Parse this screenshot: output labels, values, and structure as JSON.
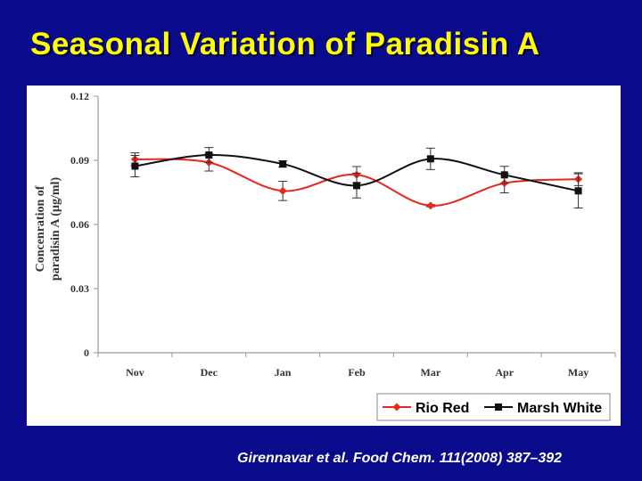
{
  "slide": {
    "title": "Seasonal Variation of Paradisin A",
    "citation": "Girennavar et al. Food Chem. 111(2008) 387–392"
  },
  "colors": {
    "background": "#0a0a8c",
    "title": "#ffff00",
    "rio_red": "#e8251e",
    "marsh_white": "#111111"
  },
  "chart_data": {
    "type": "line",
    "title": "",
    "xlabel": "",
    "ylabel_lines": [
      "Concenration of",
      "paradisin A (µg/ml)"
    ],
    "categories": [
      "Nov",
      "Dec",
      "Jan",
      "Feb",
      "Mar",
      "Apr",
      "May"
    ],
    "ylim": [
      0,
      0.12
    ],
    "yticks": [
      "0",
      "0.03",
      "0.06",
      "0.09",
      "0.12"
    ],
    "ytick_values": [
      0,
      0.03,
      0.06,
      0.09,
      0.12
    ],
    "grid": false,
    "smooth": true,
    "legend_position": "bottom-right",
    "series": [
      {
        "name": "Rio Red",
        "marker": "diamond",
        "color": "#e8251e",
        "values": [
          0.0905,
          0.089,
          0.0757,
          0.0833,
          0.0688,
          0.0793,
          0.0812
        ],
        "error": [
          0.003,
          0.004,
          0.0045,
          0.0038,
          0.0005,
          0.0045,
          0.003
        ]
      },
      {
        "name": "Marsh White",
        "marker": "square",
        "color": "#111111",
        "values": [
          0.0873,
          0.0925,
          0.0883,
          0.0782,
          0.0907,
          0.0832,
          0.0757
        ],
        "error": [
          0.005,
          0.0035,
          0.0015,
          0.0058,
          0.005,
          0.004,
          0.008
        ]
      }
    ]
  }
}
